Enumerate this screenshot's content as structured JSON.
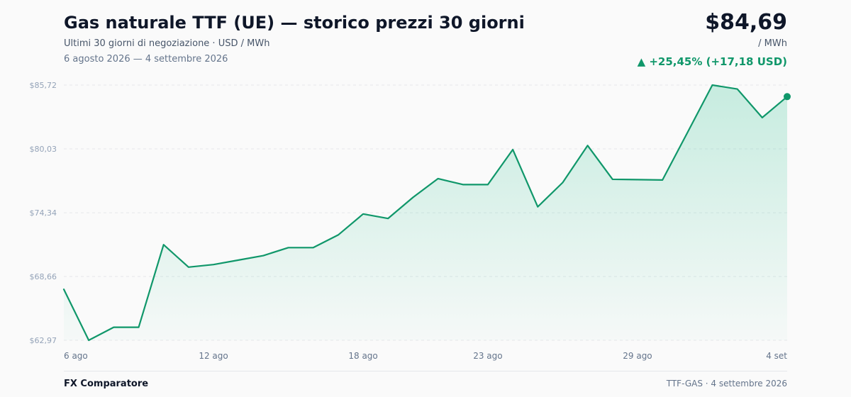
{
  "header": {
    "title": "Gas naturale TTF (UE) — storico prezzi 30 giorni",
    "subtitle": "Ultimi 30 giorni di negoziazione · USD / MWh",
    "date_range": "6 agosto 2026 — 4 settembre 2026",
    "price": "$84,69",
    "unit": "/ MWh",
    "change": "▲ +25,45% (+17,18 USD)"
  },
  "footer": {
    "brand": "FX Comparatore",
    "source": "TTF-GAS · 4 settembre 2026"
  },
  "colors": {
    "line": "#10976a",
    "fill": "#10b981",
    "grid": "#e5e7eb"
  },
  "chart_data": {
    "type": "area",
    "x": [
      "2026-08-06",
      "2026-08-07",
      "2026-08-08",
      "2026-08-09",
      "2026-08-10",
      "2026-08-11",
      "2026-08-12",
      "2026-08-13",
      "2026-08-14",
      "2026-08-15",
      "2026-08-16",
      "2026-08-17",
      "2026-08-18",
      "2026-08-19",
      "2026-08-20",
      "2026-08-21",
      "2026-08-22",
      "2026-08-23",
      "2026-08-24",
      "2026-08-25",
      "2026-08-26",
      "2026-08-27",
      "2026-08-28",
      "2026-08-29",
      "2026-08-30",
      "2026-08-31",
      "2026-09-01",
      "2026-09-02",
      "2026-09-03",
      "2026-09-04"
    ],
    "values": [
      67.51,
      62.97,
      64.13,
      64.13,
      71.49,
      69.49,
      69.72,
      70.12,
      70.52,
      71.23,
      71.23,
      72.36,
      74.23,
      73.83,
      75.71,
      77.38,
      76.85,
      76.85,
      79.97,
      74.87,
      77.03,
      80.33,
      77.32,
      77.29,
      77.26,
      81.48,
      85.72,
      85.37,
      82.82,
      84.69
    ],
    "ylim": [
      62.97,
      85.72
    ],
    "yticks": [
      {
        "value": 85.72,
        "label": "$85,72"
      },
      {
        "value": 80.03,
        "label": "$80,03"
      },
      {
        "value": 74.34,
        "label": "$74,34"
      },
      {
        "value": 68.66,
        "label": "$68,66"
      },
      {
        "value": 62.97,
        "label": "$62,97"
      }
    ],
    "xticks": [
      {
        "index": 0,
        "label": "6 ago"
      },
      {
        "index": 6,
        "label": "12 ago"
      },
      {
        "index": 12,
        "label": "18 ago"
      },
      {
        "index": 17,
        "label": "23 ago"
      },
      {
        "index": 23,
        "label": "29 ago"
      },
      {
        "index": 29,
        "label": "4 set"
      }
    ],
    "grid": true
  }
}
